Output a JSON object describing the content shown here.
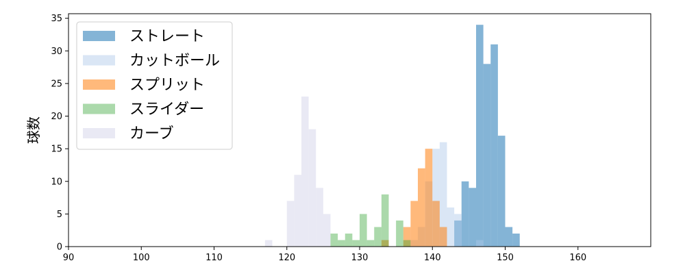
{
  "chart_data": {
    "type": "bar",
    "ylabel": "球数",
    "xlabel": "",
    "xlim": [
      90,
      170
    ],
    "ylim": [
      0,
      35.7
    ],
    "xticks": [
      90,
      100,
      110,
      120,
      130,
      140,
      150,
      160
    ],
    "yticks": [
      0,
      5,
      10,
      15,
      20,
      25,
      30,
      35
    ],
    "bin_width": 1,
    "legend_position": "top-left",
    "grid": false,
    "series": [
      {
        "name": "ストレート",
        "color": "#1f77b4",
        "opacity": 0.55,
        "bins": [
          [
            143,
            4
          ],
          [
            144,
            10
          ],
          [
            145,
            9
          ],
          [
            146,
            34
          ],
          [
            147,
            28
          ],
          [
            148,
            31
          ],
          [
            149,
            17
          ],
          [
            150,
            3
          ],
          [
            151,
            2
          ]
        ]
      },
      {
        "name": "カットボール",
        "color": "#aec7e8",
        "opacity": 0.45,
        "bins": [
          [
            137,
            1
          ],
          [
            138,
            3
          ],
          [
            139,
            10
          ],
          [
            140,
            15
          ],
          [
            141,
            16
          ],
          [
            142,
            6
          ],
          [
            143,
            5
          ],
          [
            146,
            1
          ]
        ]
      },
      {
        "name": "スプリット",
        "color": "#ff7f0e",
        "opacity": 0.55,
        "bins": [
          [
            133,
            1
          ],
          [
            136,
            3
          ],
          [
            137,
            7
          ],
          [
            138,
            12
          ],
          [
            139,
            15
          ],
          [
            140,
            7
          ],
          [
            141,
            3
          ]
        ]
      },
      {
        "name": "スライダー",
        "color": "#2ca02c",
        "opacity": 0.4,
        "bins": [
          [
            126,
            2
          ],
          [
            127,
            1
          ],
          [
            128,
            2
          ],
          [
            129,
            1
          ],
          [
            130,
            5
          ],
          [
            131,
            1
          ],
          [
            132,
            3
          ],
          [
            133,
            8
          ],
          [
            135,
            4
          ],
          [
            136,
            1
          ]
        ]
      },
      {
        "name": "カーブ",
        "color": "#c7c7e3",
        "opacity": 0.4,
        "bins": [
          [
            117,
            1
          ],
          [
            120,
            7
          ],
          [
            121,
            11
          ],
          [
            122,
            23
          ],
          [
            123,
            18
          ],
          [
            124,
            9
          ],
          [
            125,
            5
          ]
        ]
      }
    ]
  }
}
